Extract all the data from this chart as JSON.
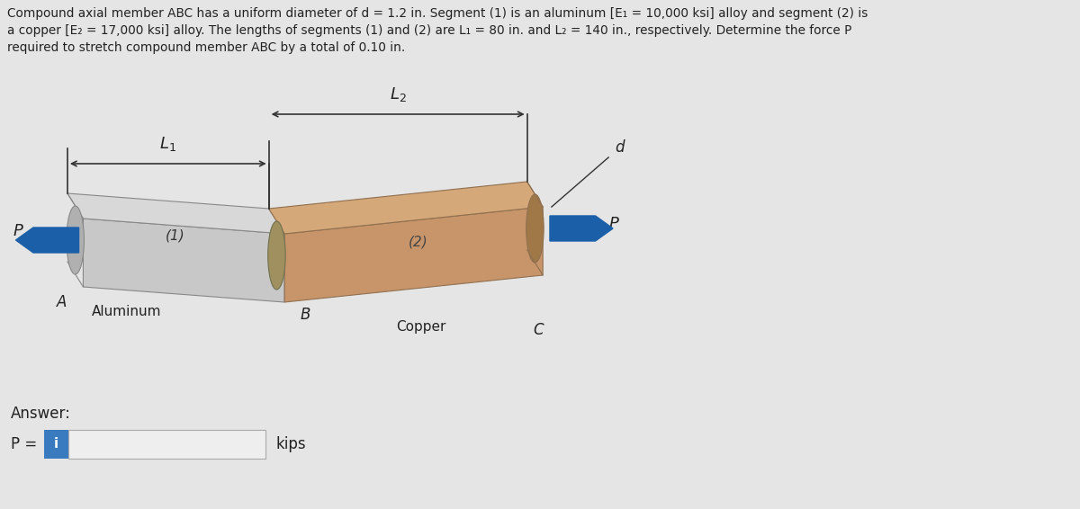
{
  "bg_color": "#e5e5e5",
  "title_line1": "Compound axial member ABC has a uniform diameter of d = 1.2 in. Segment (1) is an aluminum [E₁ = 10,000 ksi] alloy and segment (2) is",
  "title_line2": "a copper [E₂ = 17,000 ksi] alloy. The lengths of segments (1) and (2) are L₁ = 80 in. and L₂ = 140 in., respectively. Determine the force P",
  "title_line3": "required to stretch compound member ABC by a total of 0.10 in.",
  "answer_text": "Answer:",
  "p_label": "P =",
  "kips_label": "kips",
  "al_front": "#c8c8c8",
  "al_top": "#d8d8d8",
  "al_end": "#b0b0b0",
  "cu_front": "#c8956a",
  "cu_top": "#d4a878",
  "cu_end": "#b07850",
  "arrow_color": "#1a5fa8",
  "text_color": "#222222",
  "input_box_color": "#3a7abf",
  "input_box_text": "i",
  "dim_color": "#333333"
}
